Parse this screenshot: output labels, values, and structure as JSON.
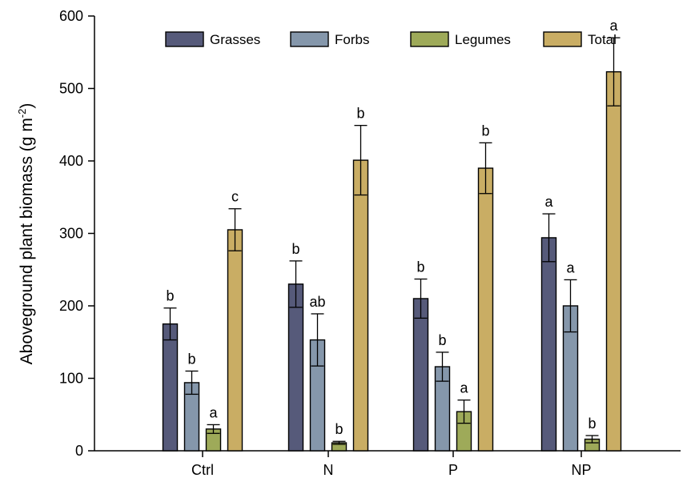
{
  "chart_data": {
    "type": "bar",
    "categories": [
      "Ctrl",
      "N",
      "P",
      "NP"
    ],
    "ylabel": {
      "main": "Aboveground plant biomass (g m",
      "sup": "-2",
      "tail": ")"
    },
    "xlabel": "",
    "ylim": [
      0,
      600
    ],
    "yticks": [
      0,
      100,
      200,
      300,
      400,
      500,
      600
    ],
    "legend_position": "top",
    "series": [
      {
        "name": "Grasses",
        "color": "#565a7a",
        "values": [
          175,
          230,
          210,
          294
        ],
        "errors": [
          22,
          32,
          27,
          33
        ],
        "letters": [
          "b",
          "b",
          "b",
          "a"
        ]
      },
      {
        "name": "Forbs",
        "color": "#8597ab",
        "values": [
          94,
          153,
          116,
          200
        ],
        "errors": [
          16,
          36,
          20,
          36
        ],
        "letters": [
          "b",
          "ab",
          "b",
          "a"
        ]
      },
      {
        "name": "Legumes",
        "color": "#9eaa59",
        "values": [
          30,
          11,
          54,
          16
        ],
        "errors": [
          6,
          2,
          16,
          5
        ],
        "letters": [
          "a",
          "b",
          "a",
          "b"
        ]
      },
      {
        "name": "Total",
        "color": "#c9ad64",
        "values": [
          305,
          401,
          390,
          523
        ],
        "errors": [
          29,
          48,
          35,
          47
        ],
        "letters": [
          "c",
          "b",
          "b",
          "a"
        ]
      }
    ]
  }
}
